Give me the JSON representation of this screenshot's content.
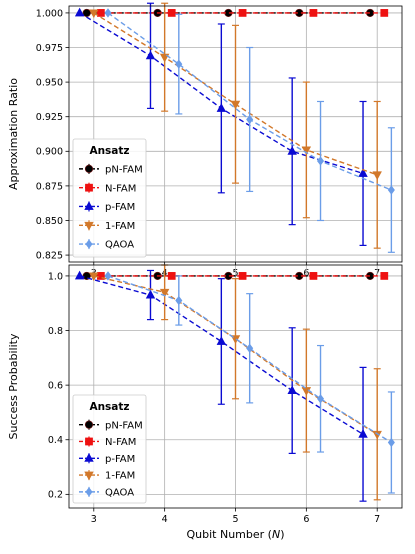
{
  "chart_data": [
    {
      "type": "line",
      "ylabel": "Approximation Ratio",
      "xlabel": "",
      "xlim": [
        2.65,
        7.35
      ],
      "ylim": [
        0.82,
        1.005
      ],
      "xticks": [
        3,
        4,
        5,
        6,
        7
      ],
      "yticks": [
        0.825,
        0.85,
        0.875,
        0.9,
        0.925,
        0.95,
        0.975,
        1.0
      ],
      "ytick_labels": [
        "0.825",
        "0.850",
        "0.875",
        "0.900",
        "0.925",
        "0.950",
        "0.975",
        "1.000"
      ],
      "grid": true,
      "legend": {
        "title": "Ansatz",
        "position": "lower-left"
      },
      "series": [
        {
          "name": "pN-FAM",
          "color": "#000000",
          "marker": "circle",
          "x": [
            2.9,
            3.9,
            4.9,
            5.9,
            6.9
          ],
          "y": [
            1.0,
            1.0,
            1.0,
            1.0,
            1.0
          ],
          "err": [
            0,
            0,
            0,
            0,
            0
          ]
        },
        {
          "name": "N-FAM",
          "color": "#ee1111",
          "marker": "square",
          "x": [
            3.1,
            4.1,
            5.1,
            6.1,
            7.1
          ],
          "y": [
            1.0,
            1.0,
            1.0,
            1.0,
            1.0
          ],
          "err": [
            0,
            0,
            0,
            0,
            0
          ]
        },
        {
          "name": "p-FAM",
          "color": "#0a0ad2",
          "marker": "triangle-up",
          "x": [
            2.8,
            3.8,
            4.8,
            5.8,
            6.8
          ],
          "y": [
            1.0,
            0.969,
            0.931,
            0.9,
            0.884
          ],
          "err": [
            0,
            0.038,
            0.061,
            0.053,
            0.052
          ]
        },
        {
          "name": "1-FAM",
          "color": "#d2782a",
          "marker": "triangle-down",
          "x": [
            3.0,
            4.0,
            5.0,
            6.0,
            7.0
          ],
          "y": [
            1.0,
            0.968,
            0.934,
            0.901,
            0.883
          ],
          "err": [
            0,
            0.039,
            0.057,
            0.049,
            0.053
          ]
        },
        {
          "name": "QAOA",
          "color": "#6b9de8",
          "marker": "diamond",
          "x": [
            3.2,
            4.2,
            5.2,
            6.2,
            7.2
          ],
          "y": [
            1.0,
            0.963,
            0.923,
            0.893,
            0.872
          ],
          "err": [
            0,
            0.036,
            0.052,
            0.043,
            0.045
          ]
        }
      ]
    },
    {
      "type": "line",
      "ylabel": "Success Probability",
      "xlabel": "Qubit Number (N)",
      "xlim": [
        2.65,
        7.35
      ],
      "ylim": [
        0.15,
        1.04
      ],
      "xticks": [
        3,
        4,
        5,
        6,
        7
      ],
      "yticks": [
        0.2,
        0.4,
        0.6,
        0.8,
        1.0
      ],
      "ytick_labels": [
        "0.2",
        "0.4",
        "0.6",
        "0.8",
        "1.0"
      ],
      "grid": true,
      "legend": {
        "title": "Ansatz",
        "position": "lower-left"
      },
      "series": [
        {
          "name": "pN-FAM",
          "color": "#000000",
          "marker": "circle",
          "x": [
            2.9,
            3.9,
            4.9,
            5.9,
            6.9
          ],
          "y": [
            1.0,
            1.0,
            1.0,
            1.0,
            1.0
          ],
          "err": [
            0,
            0,
            0,
            0,
            0
          ]
        },
        {
          "name": "N-FAM",
          "color": "#ee1111",
          "marker": "square",
          "x": [
            3.1,
            4.1,
            5.1,
            6.1,
            7.1
          ],
          "y": [
            1.0,
            1.0,
            1.0,
            1.0,
            1.0
          ],
          "err": [
            0,
            0,
            0,
            0,
            0
          ]
        },
        {
          "name": "p-FAM",
          "color": "#0a0ad2",
          "marker": "triangle-up",
          "x": [
            2.8,
            3.8,
            4.8,
            5.8,
            6.8
          ],
          "y": [
            1.0,
            0.93,
            0.76,
            0.58,
            0.42
          ],
          "err": [
            0,
            0.09,
            0.23,
            0.23,
            0.245
          ]
        },
        {
          "name": "1-FAM",
          "color": "#d2782a",
          "marker": "triangle-down",
          "x": [
            3.0,
            4.0,
            5.0,
            6.0,
            7.0
          ],
          "y": [
            1.0,
            0.94,
            0.77,
            0.58,
            0.42
          ],
          "err": [
            0,
            0.1,
            0.22,
            0.225,
            0.24
          ]
        },
        {
          "name": "QAOA",
          "color": "#6b9de8",
          "marker": "diamond",
          "x": [
            3.2,
            4.2,
            5.2,
            6.2,
            7.2
          ],
          "y": [
            1.0,
            0.91,
            0.735,
            0.55,
            0.39
          ],
          "err": [
            0,
            0.09,
            0.2,
            0.195,
            0.185
          ]
        }
      ]
    }
  ]
}
